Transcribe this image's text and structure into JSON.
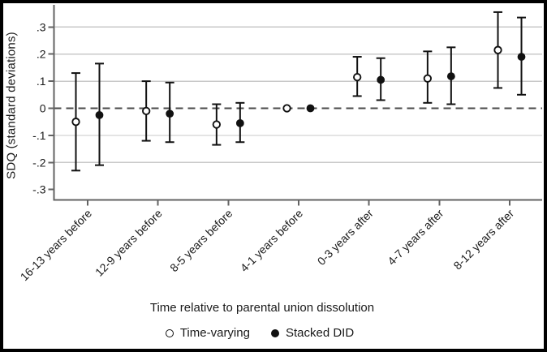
{
  "figure": {
    "ylabel": "SDQ (standard deviations)",
    "xlabel": "Time relative to parental union dissolution"
  },
  "legend": {
    "items": [
      {
        "label": "Time-varying",
        "marker": "open-circle"
      },
      {
        "label": "Stacked DID",
        "marker": "filled-circle"
      }
    ]
  },
  "chart_data": {
    "type": "scatter",
    "subtype": "coefficient-plot-with-error-bars",
    "title": "",
    "xlabel": "Time relative to parental union dissolution",
    "ylabel": "SDQ (standard deviations)",
    "categories": [
      "16-13 years before",
      "12-9 years before",
      "8-5 years before",
      "4-1 years before",
      "0-3 years after",
      "4-7 years after",
      "8-12 years after"
    ],
    "x_tick_angle_deg": 45,
    "y_ticks": [
      0.3,
      0.2,
      0.1,
      0,
      -0.1,
      -0.2,
      -0.3
    ],
    "y_tick_labels": [
      ".3",
      ".2",
      ".1",
      "0",
      "-.1",
      "-.2",
      "-.3"
    ],
    "grid_lines": [
      0.3,
      0.2,
      0.1,
      -0.1,
      -0.2
    ],
    "ylim": [
      -0.34,
      0.375
    ],
    "zero_reference_line": 0,
    "legend_position": "bottom",
    "series": [
      {
        "name": "Time-varying",
        "marker": "open-circle",
        "estimates": [
          -0.05,
          -0.01,
          -0.06,
          0,
          0.115,
          0.11,
          0.215
        ],
        "ci_low": [
          -0.23,
          -0.12,
          -0.135,
          0,
          0.045,
          0.02,
          0.075
        ],
        "ci_high": [
          0.13,
          0.1,
          0.015,
          0,
          0.19,
          0.21,
          0.355
        ]
      },
      {
        "name": "Stacked DID",
        "marker": "filled-circle",
        "estimates": [
          -0.025,
          -0.02,
          -0.055,
          0,
          0.105,
          0.118,
          0.19
        ],
        "ci_low": [
          -0.21,
          -0.125,
          -0.125,
          0,
          0.03,
          0.015,
          0.05
        ],
        "ci_high": [
          0.165,
          0.095,
          0.02,
          0,
          0.185,
          0.225,
          0.335
        ]
      }
    ],
    "colors": {
      "marker": "#111111",
      "grid": "#c9c9c9",
      "axis": "#636363",
      "zero_line": "#4a4a4a",
      "text": "#1a1a1a",
      "background": "#ffffff",
      "border": "#000000"
    }
  }
}
